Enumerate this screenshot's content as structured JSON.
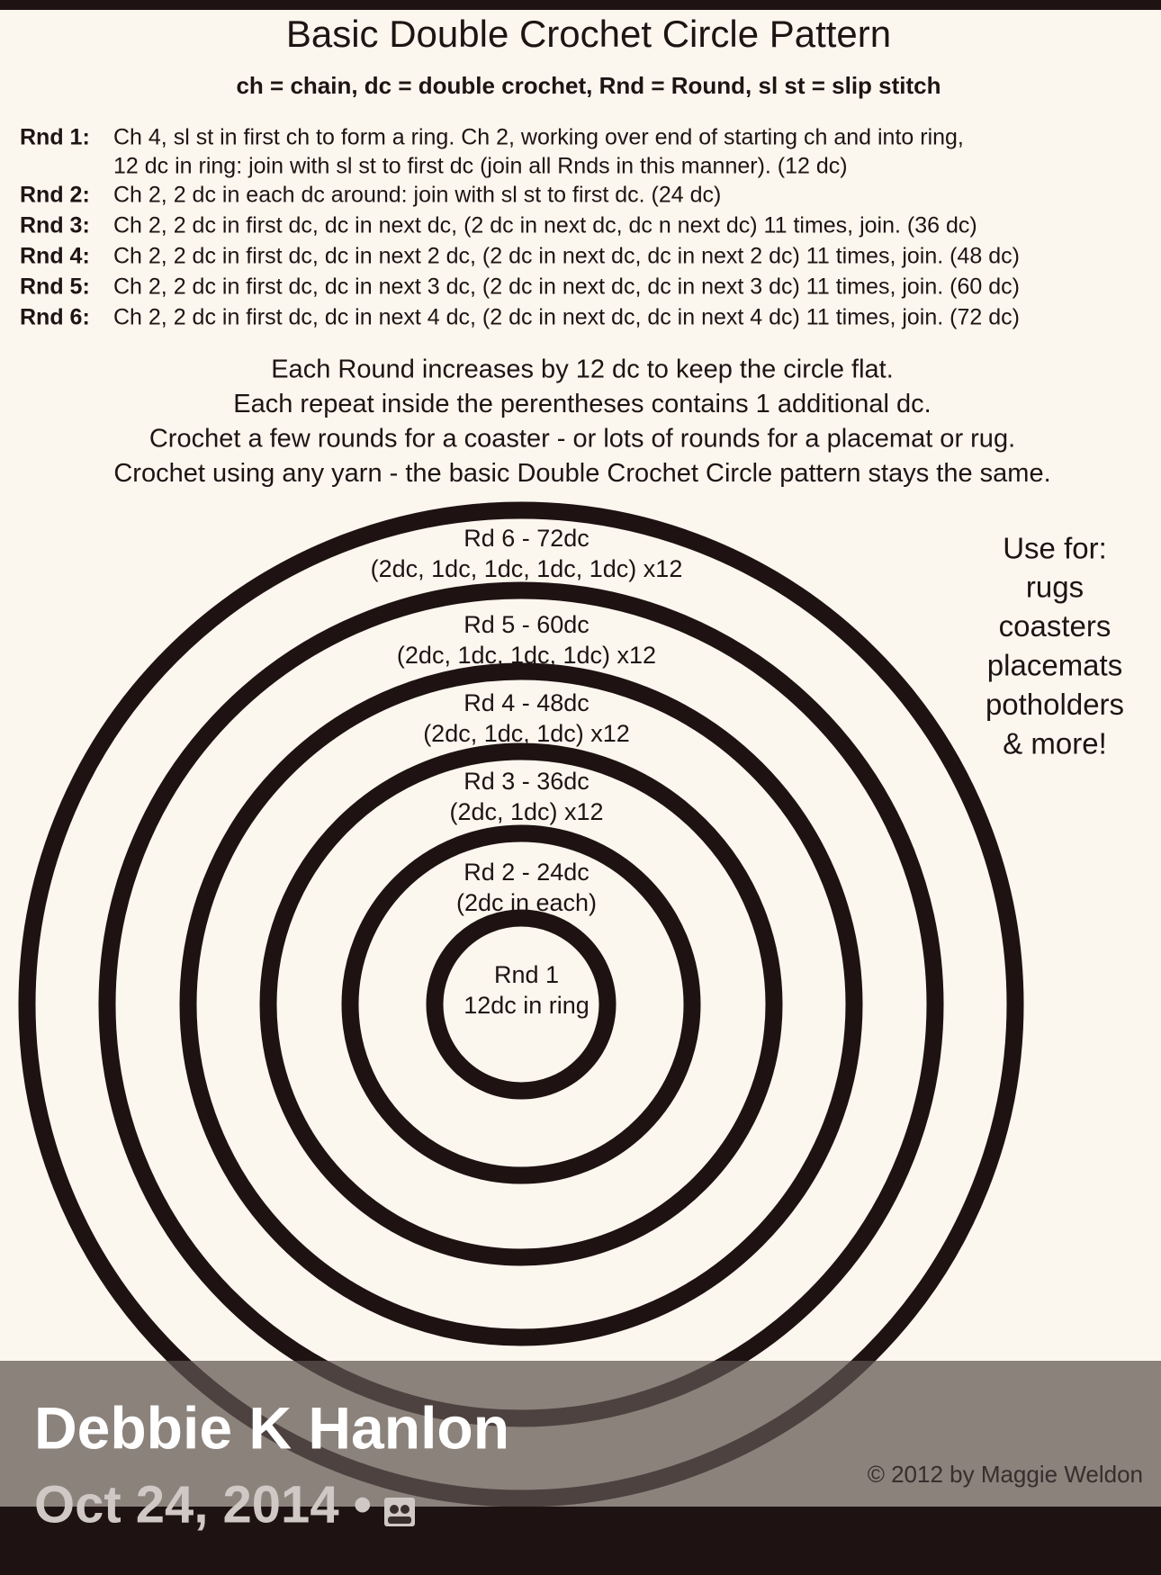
{
  "header": {
    "title": "Basic Double Crochet Circle Pattern",
    "abbreviations": "ch = chain, dc = double crochet, Rnd = Round, sl st = slip stitch"
  },
  "rounds": [
    {
      "label": "Rnd 1:",
      "lines": [
        "Ch 4, sl st in first ch to form a ring.  Ch 2, working over end of starting ch and into ring,",
        "12 dc in ring: join with sl st to first dc (join all Rnds in this manner).  (12 dc)"
      ]
    },
    {
      "label": "Rnd 2:",
      "lines": [
        "Ch 2, 2 dc in each dc around: join with sl st to first dc.  (24 dc)"
      ]
    },
    {
      "label": "Rnd 3:",
      "lines": [
        "Ch 2, 2 dc in first dc, dc in next dc, (2 dc in next dc, dc n next dc) 11 times, join.  (36 dc)"
      ]
    },
    {
      "label": "Rnd 4:",
      "lines": [
        "Ch 2, 2 dc in first dc, dc in next 2 dc, (2 dc in next dc, dc in next 2 dc) 11 times, join.  (48 dc)"
      ]
    },
    {
      "label": "Rnd 5:",
      "lines": [
        "Ch 2, 2 dc in first dc, dc in next 3 dc, (2 dc in next dc, dc in next 3 dc) 11 times, join.  (60 dc)"
      ]
    },
    {
      "label": "Rnd 6:",
      "lines": [
        "Ch 2, 2 dc in first dc, dc in next 4 dc, (2 dc in next dc, dc in next 4 dc) 11 times, join.  (72 dc)"
      ]
    }
  ],
  "notes": [
    "Each Round increases by 12 dc to keep the circle flat.",
    "Each repeat inside the perentheses contains 1 additional dc.",
    "Crochet a few rounds for a coaster - or lots of rounds for a placemat or rug.",
    "Crochet using any yarn - the basic Double Crochet Circle pattern stays the same."
  ],
  "diagram": {
    "rings": [
      {
        "title": "Rd 6 - 72dc",
        "detail": "(2dc, 1dc, 1dc, 1dc, 1dc) x12"
      },
      {
        "title": "Rd 5 - 60dc",
        "detail": "(2dc, 1dc, 1dc, 1dc) x12"
      },
      {
        "title": "Rd 4 - 48dc",
        "detail": "(2dc, 1dc, 1dc) x12"
      },
      {
        "title": "Rd 3 - 36dc",
        "detail": "(2dc, 1dc) x12"
      },
      {
        "title": "Rd 2 - 24dc",
        "detail": "(2dc in each)"
      },
      {
        "title": "Rnd 1",
        "detail": "12dc in ring"
      }
    ]
  },
  "uses": {
    "heading": "Use for:",
    "items": [
      "rugs",
      "coasters",
      "placemats",
      "potholders",
      "& more!"
    ]
  },
  "copyright": "© 2012 by Maggie Weldon",
  "post": {
    "author": "Debbie K Hanlon",
    "date": "Oct 24, 2014 •"
  }
}
